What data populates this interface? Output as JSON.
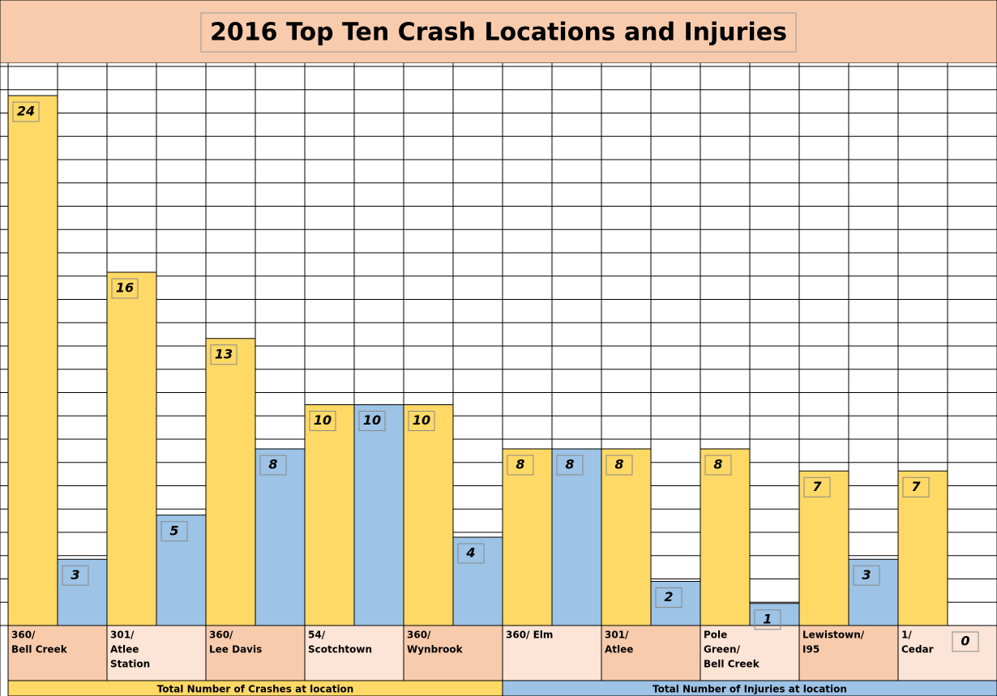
{
  "chart_data": {
    "type": "bar",
    "title": "2016 Top Ten Crash Locations and Injuries",
    "categories": [
      [
        "360/",
        "Bell Creek"
      ],
      [
        "301/",
        "Atlee",
        "Station"
      ],
      [
        "360/",
        "Lee Davis"
      ],
      [
        "54/",
        "Scotchtown"
      ],
      [
        "360/",
        "Wynbrook"
      ],
      [
        "360/ Elm"
      ],
      [
        "301/",
        "Atlee"
      ],
      [
        "Pole",
        "Green/",
        "Bell Creek"
      ],
      [
        "Lewistown/",
        "I95"
      ],
      [
        "1/",
        "Cedar"
      ]
    ],
    "series": [
      {
        "name": "Total Number of Crashes at location",
        "color": "#ffd966",
        "values": [
          24,
          16,
          13,
          10,
          10,
          8,
          8,
          8,
          7,
          7
        ]
      },
      {
        "name": "Total Number of Injuries at location",
        "color": "#9dc3e6",
        "values": [
          3,
          5,
          8,
          10,
          4,
          8,
          2,
          1,
          3,
          0
        ]
      }
    ],
    "ylim": [
      0,
      24
    ],
    "grid": true
  }
}
